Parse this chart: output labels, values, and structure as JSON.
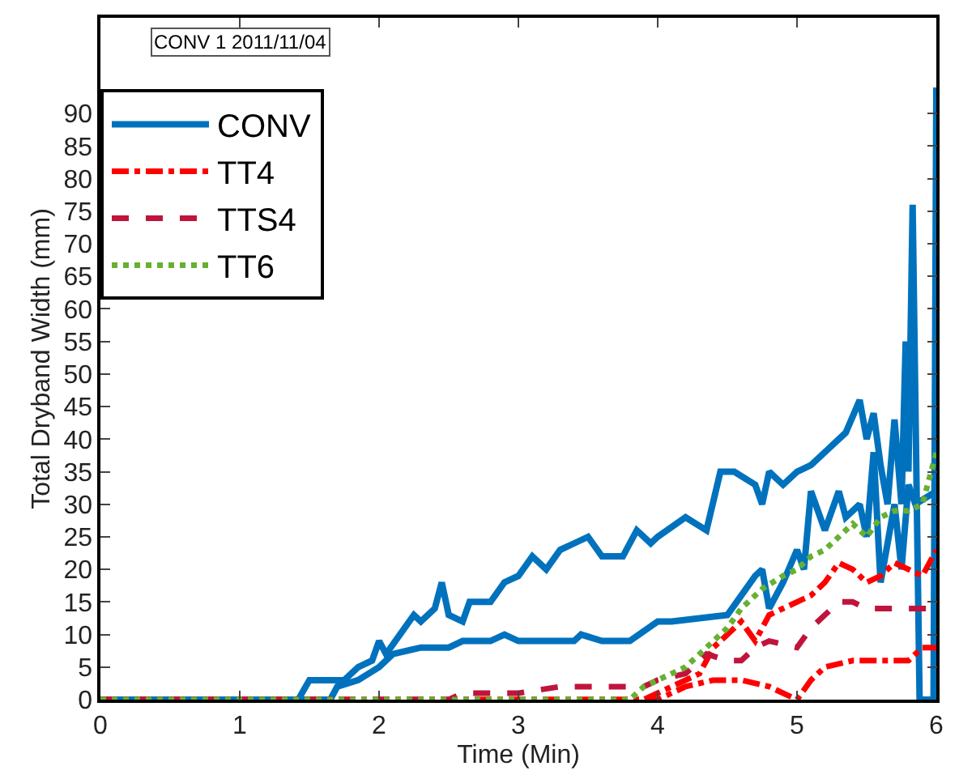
{
  "chart_data": {
    "type": "line",
    "xlabel": "Time (Min)",
    "ylabel": "Total Dryband Width (mm)",
    "xlim": [
      0,
      6
    ],
    "xticks": [
      0,
      1,
      2,
      3,
      4,
      5,
      6
    ],
    "ylim": [
      0,
      104.7
    ],
    "yticks": [
      0,
      5,
      10,
      15,
      20,
      25,
      30,
      35,
      40,
      45,
      50,
      55,
      60,
      65,
      70,
      75,
      80,
      85,
      90
    ],
    "legend": "top left",
    "marker": "none",
    "annotations": [
      "CONV 1 2011/11/04"
    ],
    "series": [
      {
        "name": "CONV",
        "color": "#0072bd",
        "line_style": "solid",
        "x": [
          0,
          1.42,
          1.5,
          1.75,
          1.85,
          1.95,
          2.0,
          2.05,
          2.15,
          2.25,
          2.3,
          2.4,
          2.45,
          2.5,
          2.6,
          2.65,
          2.8,
          2.9,
          3.0,
          3.1,
          3.2,
          3.3,
          3.4,
          3.5,
          3.6,
          3.65,
          3.75,
          3.85,
          3.95,
          4.0,
          4.2,
          4.35,
          4.45,
          4.55,
          4.7,
          4.75,
          4.8,
          4.9,
          5.0,
          5.1,
          5.2,
          5.35,
          5.45,
          5.5,
          5.55,
          5.6,
          5.65,
          5.7,
          5.75,
          5.78,
          5.8,
          5.83,
          5.86,
          5.88,
          5.98,
          6.0
        ],
        "values": [
          0,
          0,
          3,
          3,
          5,
          6,
          9,
          7,
          10,
          13,
          12,
          14,
          18,
          13,
          12,
          15,
          15,
          18,
          19,
          22,
          20,
          23,
          24,
          25,
          22,
          22,
          22,
          26,
          24,
          25,
          28,
          26,
          35,
          35,
          33,
          30,
          35,
          33,
          35,
          36,
          38,
          41,
          46,
          40,
          44,
          36,
          30,
          43,
          30,
          55,
          35,
          76,
          30,
          0,
          0,
          94
        ]
      },
      {
        "color": "#0072bd",
        "line_style": "solid",
        "x": [
          0,
          1.65,
          1.7,
          1.85,
          2.0,
          2.1,
          2.3,
          2.5,
          2.6,
          2.8,
          2.9,
          3.0,
          3.1,
          3.4,
          3.45,
          3.6,
          3.8,
          4.0,
          4.1,
          4.5,
          4.6,
          4.7,
          4.75,
          4.8,
          4.9,
          5.0,
          5.05,
          5.1,
          5.2,
          5.3,
          5.35,
          5.45,
          5.5,
          5.55,
          5.6,
          5.7,
          5.75,
          5.8,
          5.85,
          6.0
        ],
        "values": [
          0,
          0,
          2,
          3,
          5,
          7,
          8,
          8,
          9,
          9,
          10,
          9,
          9,
          9,
          10,
          9,
          9,
          12,
          12,
          13,
          16,
          19,
          20,
          14,
          18,
          23,
          20,
          32,
          26,
          32,
          28,
          30,
          25,
          38,
          18,
          30,
          20,
          33,
          30,
          32
        ]
      },
      {
        "name": "TT4",
        "color": "#ff0000",
        "line_style": "dashdot",
        "x": [
          0,
          3.9,
          4.0,
          4.1,
          4.3,
          4.4,
          4.5,
          4.6,
          4.7,
          4.8,
          5.0,
          5.1,
          5.2,
          5.3,
          5.4,
          5.5,
          5.6,
          5.7,
          5.8,
          5.9,
          6.0
        ],
        "values": [
          0,
          0,
          1,
          2,
          4,
          8,
          10,
          12,
          9,
          13,
          15,
          16,
          18,
          21,
          20,
          18,
          19,
          21,
          20,
          19,
          23
        ]
      },
      {
        "color": "#ff0000",
        "line_style": "dashdot",
        "x": [
          0,
          4.0,
          4.2,
          4.4,
          4.6,
          4.8,
          5.0,
          5.1,
          5.2,
          5.4,
          5.5,
          5.8,
          5.9,
          6.0
        ],
        "values": [
          0,
          0,
          2,
          3,
          3,
          2,
          0,
          3,
          5,
          6,
          6,
          6,
          8,
          8
        ]
      },
      {
        "name": "TTS4",
        "color": "#c0143c",
        "line_style": "dashed",
        "x": [
          0,
          2.5,
          2.6,
          3.0,
          3.3,
          3.9,
          4.0,
          4.2,
          4.35,
          4.5,
          4.6,
          4.7,
          4.8,
          5.0,
          5.1,
          5.3,
          5.4,
          5.5,
          5.7,
          6.0
        ],
        "values": [
          0,
          0,
          1,
          1,
          2,
          2,
          3,
          4,
          7,
          6,
          6,
          8,
          9,
          8,
          11,
          15,
          15,
          14,
          14,
          14
        ]
      },
      {
        "name": "TT6",
        "color": "#66b032",
        "line_style": "dotted",
        "x": [
          0,
          3.8,
          3.9,
          4.0,
          4.1,
          4.2,
          4.35,
          4.5,
          4.6,
          4.75,
          4.9,
          5.0,
          5.1,
          5.2,
          5.3,
          5.4,
          5.5,
          5.6,
          5.7,
          5.8,
          5.9,
          6.0
        ],
        "values": [
          0,
          0,
          2,
          3,
          4,
          5,
          8,
          11,
          14,
          17,
          19,
          20,
          22,
          23,
          25,
          27,
          25,
          28,
          29,
          29,
          30,
          38
        ]
      }
    ]
  }
}
